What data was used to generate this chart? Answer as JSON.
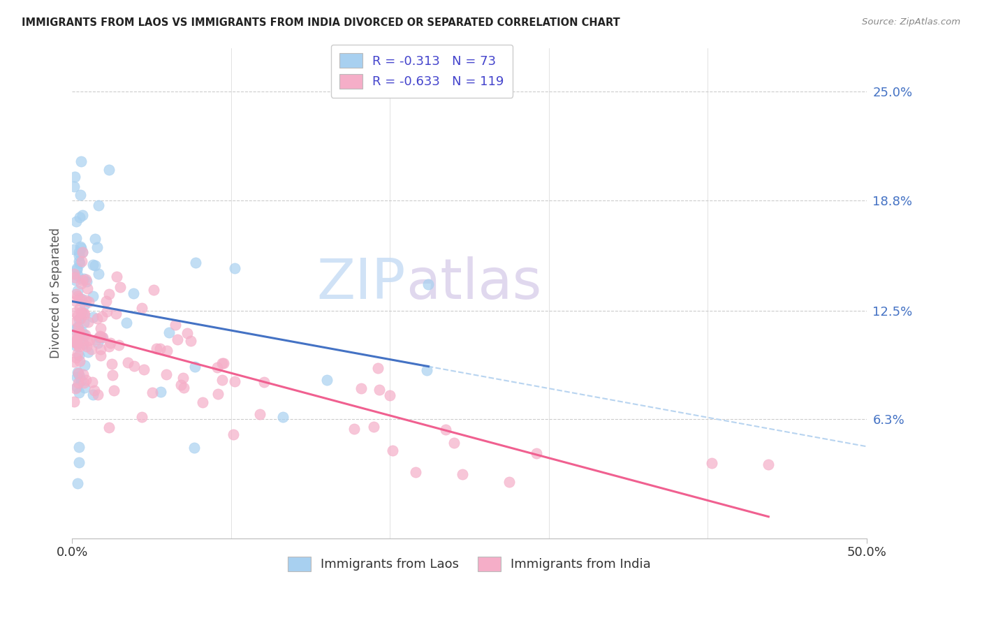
{
  "title": "IMMIGRANTS FROM LAOS VS IMMIGRANTS FROM INDIA DIVORCED OR SEPARATED CORRELATION CHART",
  "source": "Source: ZipAtlas.com",
  "ylabel": "Divorced or Separated",
  "ytick_labels": [
    "25.0%",
    "18.8%",
    "12.5%",
    "6.3%"
  ],
  "ytick_values": [
    0.25,
    0.188,
    0.125,
    0.063
  ],
  "xlim": [
    0.0,
    0.5
  ],
  "ylim": [
    -0.005,
    0.275
  ],
  "legend_laos": "Immigrants from Laos",
  "legend_india": "Immigrants from India",
  "r_laos": "-0.313",
  "n_laos": "73",
  "r_india": "-0.633",
  "n_india": "119",
  "color_laos": "#a8d0f0",
  "color_india": "#f5aec8",
  "color_laos_line": "#4472c4",
  "color_india_line": "#f06090",
  "color_trendline_dashed": "#b8d4f0",
  "background_color": "#ffffff",
  "watermark_zip": "ZIP",
  "watermark_atlas": "atlas"
}
